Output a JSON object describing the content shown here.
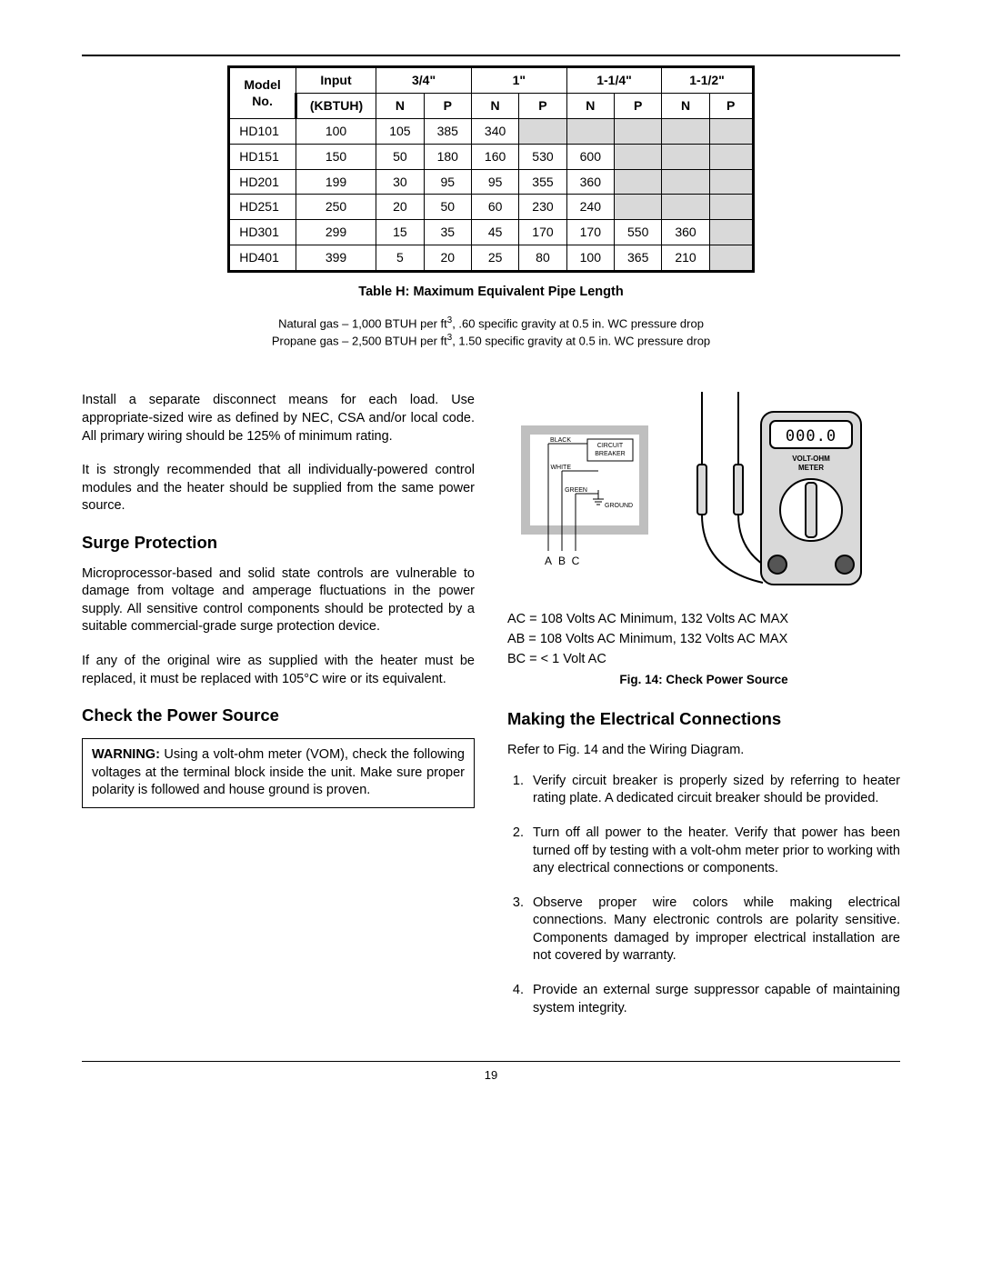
{
  "table": {
    "header_model": "Model No.",
    "header_input": "Input (KBTUH)",
    "sizes": [
      "3/4\"",
      "1\"",
      "1-1/4\"",
      "1-1/2\""
    ],
    "sub_n": "N",
    "sub_p": "P",
    "rows": [
      {
        "model": "HD101",
        "input": "100",
        "cells": [
          "105",
          "385",
          "340",
          "",
          "",
          "",
          "",
          ""
        ],
        "shade": [
          0,
          0,
          0,
          1,
          1,
          1,
          1,
          1
        ]
      },
      {
        "model": "HD151",
        "input": "150",
        "cells": [
          "50",
          "180",
          "160",
          "530",
          "600",
          "",
          "",
          ""
        ],
        "shade": [
          0,
          0,
          0,
          0,
          0,
          1,
          1,
          1
        ]
      },
      {
        "model": "HD201",
        "input": "199",
        "cells": [
          "30",
          "95",
          "95",
          "355",
          "360",
          "",
          "",
          ""
        ],
        "shade": [
          0,
          0,
          0,
          0,
          0,
          1,
          1,
          1
        ]
      },
      {
        "model": "HD251",
        "input": "250",
        "cells": [
          "20",
          "50",
          "60",
          "230",
          "240",
          "",
          "",
          ""
        ],
        "shade": [
          0,
          0,
          0,
          0,
          0,
          1,
          1,
          1
        ]
      },
      {
        "model": "HD301",
        "input": "299",
        "cells": [
          "15",
          "35",
          "45",
          "170",
          "170",
          "550",
          "360",
          ""
        ],
        "shade": [
          0,
          0,
          0,
          0,
          0,
          0,
          0,
          1
        ]
      },
      {
        "model": "HD401",
        "input": "399",
        "cells": [
          "5",
          "20",
          "25",
          "80",
          "100",
          "365",
          "210",
          ""
        ],
        "shade": [
          0,
          0,
          0,
          0,
          0,
          0,
          0,
          1
        ]
      }
    ],
    "caption": "Table H:  Maximum Equivalent Pipe Length",
    "note1_a": "Natural gas – 1,000 BTUH per ft",
    "note1_b": ", .60 specific gravity at 0.5 in. WC pressure drop",
    "note2_a": "Propane gas – 2,500 BTUH per ft",
    "note2_b": ", 1.50 specific gravity at 0.5 in. WC pressure drop"
  },
  "left": {
    "p1": "Install a separate disconnect means for each load. Use appropriate-sized wire as defined by NEC, CSA and/or local code. All primary wiring should be 125% of minimum rating.",
    "p2": "It is strongly recommended that all individually-powered control modules and the heater should be supplied from the same power source.",
    "h_surge": "Surge Protection",
    "p3": "Microprocessor-based and solid state controls are vulnerable to damage from voltage and amperage fluctuations in the power supply. All sensitive control components should be protected by a suitable commercial-grade surge protection device.",
    "p4": "If any of the original wire as supplied with the heater must be replaced, it must be replaced with 105°C wire or its equivalent.",
    "h_check": "Check the Power Source",
    "warn_label": "WARNING:",
    "warn_text": " Using a volt-ohm meter (VOM), check the following voltages at the terminal block inside the unit. Make sure proper polarity is followed and house ground is proven."
  },
  "right": {
    "diagram": {
      "lbl_black": "BLACK",
      "lbl_white": "WHITE",
      "lbl_green": "GREEN",
      "lbl_ground": "GROUND",
      "lbl_breaker1": "CIRCUIT",
      "lbl_breaker2": "BREAKER",
      "lbl_A": "A",
      "lbl_B": "B",
      "lbl_C": "C",
      "meter_display": "000.0",
      "meter_line1": "VOLT-OHM",
      "meter_line2": "METER"
    },
    "ac1": "AC = 108 Volts AC Minimum, 132 Volts AC MAX",
    "ac2": "AB = 108 Volts AC Minimum, 132 Volts AC MAX",
    "ac3": "BC = < 1 Volt AC",
    "fig_caption": "Fig. 14: Check Power Source",
    "h_making": "Making the Electrical Connections",
    "p_refer": "Refer to Fig. 14 and the Wiring Diagram.",
    "steps": [
      "Verify circuit breaker is properly sized by referring to heater rating plate. A dedicated circuit breaker should be provided.",
      "Turn off all power to the heater. Verify that power has been turned off by testing with a volt-ohm meter prior to working with any electrical connections or components.",
      "Observe proper wire colors while making electrical connections. Many electronic controls are polarity sensitive. Components damaged by improper electrical installation are not covered by warranty.",
      "Provide an external surge suppressor capable of maintaining system integrity."
    ]
  },
  "page_number": "19"
}
